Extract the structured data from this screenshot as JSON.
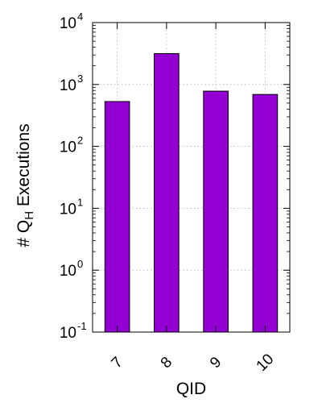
{
  "chart_data": {
    "type": "bar",
    "scale": "log10",
    "categories": [
      "7",
      "8",
      "9",
      "10"
    ],
    "values": [
      530,
      3150,
      780,
      690
    ],
    "ylim": [
      0.1,
      10000
    ],
    "y_ticks": [
      {
        "base": "10",
        "exp": "-1"
      },
      {
        "base": "10",
        "exp": "0"
      },
      {
        "base": "10",
        "exp": "1"
      },
      {
        "base": "10",
        "exp": "2"
      },
      {
        "base": "10",
        "exp": "3"
      },
      {
        "base": "10",
        "exp": "4"
      }
    ],
    "xlabel": "QID",
    "ylabel": {
      "prefix": "# Q",
      "subscript": "H",
      "suffix": " Executions"
    },
    "grid": true,
    "bar_color": "#9400D3",
    "x_tick_rotation": "diagonal"
  }
}
